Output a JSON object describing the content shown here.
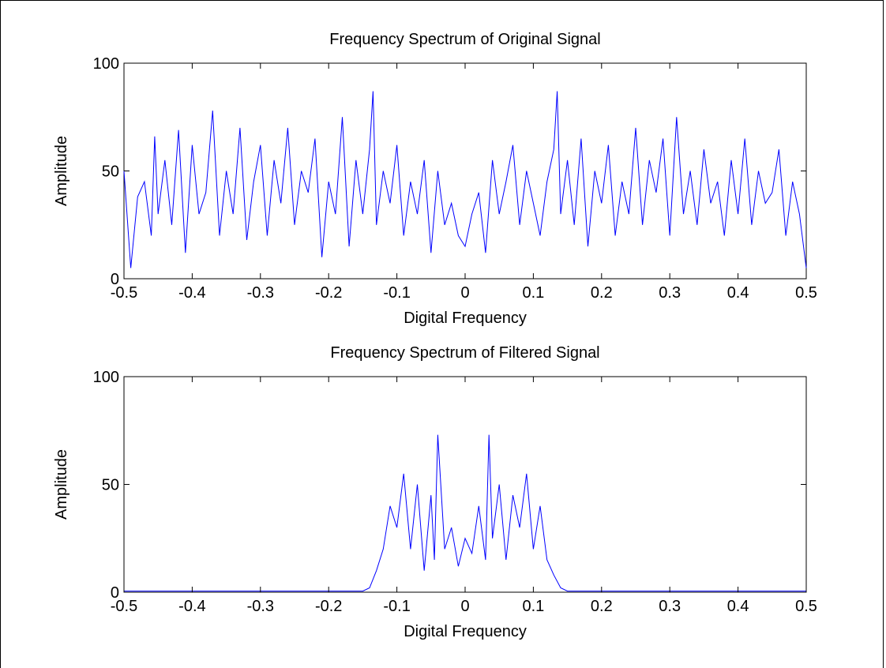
{
  "chart_data": [
    {
      "type": "line",
      "title": "Frequency Spectrum of Original Signal",
      "xlabel": "Digital Frequency",
      "ylabel": "Amplitude",
      "xlim": [
        -0.5,
        0.5
      ],
      "ylim": [
        0,
        100
      ],
      "xticks": [
        -0.5,
        -0.4,
        -0.3,
        -0.2,
        -0.1,
        0,
        0.1,
        0.2,
        0.3,
        0.4,
        0.5
      ],
      "xtick_labels": [
        "-0.5",
        "-0.4",
        "-0.3",
        "-0.2",
        "-0.1",
        "0",
        "0.1",
        "0.2",
        "0.3",
        "0.4",
        "0.5"
      ],
      "yticks": [
        0,
        50,
        100
      ],
      "ytick_labels": [
        "0",
        "50",
        "100"
      ],
      "grid": false,
      "color": "#0000ff",
      "series": [
        {
          "x": [
            -0.5,
            -0.49,
            -0.48,
            -0.47,
            -0.46,
            -0.455,
            -0.45,
            -0.44,
            -0.43,
            -0.42,
            -0.41,
            -0.4,
            -0.39,
            -0.38,
            -0.37,
            -0.36,
            -0.35,
            -0.34,
            -0.33,
            -0.32,
            -0.31,
            -0.3,
            -0.29,
            -0.28,
            -0.27,
            -0.26,
            -0.25,
            -0.24,
            -0.23,
            -0.22,
            -0.21,
            -0.2,
            -0.19,
            -0.18,
            -0.17,
            -0.16,
            -0.15,
            -0.14,
            -0.135,
            -0.13,
            -0.12,
            -0.11,
            -0.1,
            -0.09,
            -0.08,
            -0.07,
            -0.06,
            -0.05,
            -0.04,
            -0.03,
            -0.02,
            -0.01,
            0,
            0.01,
            0.02,
            0.03,
            0.04,
            0.05,
            0.06,
            0.07,
            0.08,
            0.09,
            0.1,
            0.11,
            0.12,
            0.13,
            0.135,
            0.14,
            0.15,
            0.16,
            0.17,
            0.18,
            0.19,
            0.2,
            0.21,
            0.22,
            0.23,
            0.24,
            0.25,
            0.26,
            0.27,
            0.28,
            0.29,
            0.3,
            0.31,
            0.32,
            0.33,
            0.34,
            0.35,
            0.36,
            0.37,
            0.38,
            0.39,
            0.4,
            0.41,
            0.42,
            0.43,
            0.44,
            0.45,
            0.46,
            0.47,
            0.48,
            0.49,
            0.5
          ],
          "y": [
            50,
            5,
            38,
            45,
            20,
            66,
            30,
            55,
            25,
            69,
            12,
            62,
            30,
            40,
            78,
            20,
            50,
            30,
            70,
            18,
            45,
            62,
            20,
            55,
            35,
            70,
            25,
            50,
            40,
            65,
            10,
            45,
            30,
            75,
            15,
            55,
            30,
            60,
            87,
            25,
            50,
            35,
            62,
            20,
            45,
            30,
            55,
            12,
            50,
            25,
            35,
            20,
            15,
            30,
            40,
            12,
            55,
            30,
            45,
            62,
            25,
            50,
            35,
            20,
            45,
            60,
            87,
            30,
            55,
            25,
            65,
            15,
            50,
            35,
            62,
            20,
            45,
            30,
            70,
            25,
            55,
            40,
            65,
            20,
            75,
            30,
            50,
            25,
            60,
            35,
            45,
            20,
            55,
            30,
            65,
            25,
            50,
            35,
            40,
            60,
            20,
            45,
            30,
            5
          ]
        }
      ]
    },
    {
      "type": "line",
      "title": "Frequency Spectrum of Filtered Signal",
      "xlabel": "Digital Frequency",
      "ylabel": "Amplitude",
      "xlim": [
        -0.5,
        0.5
      ],
      "ylim": [
        0,
        100
      ],
      "xticks": [
        -0.5,
        -0.4,
        -0.3,
        -0.2,
        -0.1,
        0,
        0.1,
        0.2,
        0.3,
        0.4,
        0.5
      ],
      "xtick_labels": [
        "-0.5",
        "-0.4",
        "-0.3",
        "-0.2",
        "-0.1",
        "0",
        "0.1",
        "0.2",
        "0.3",
        "0.4",
        "0.5"
      ],
      "yticks": [
        0,
        50,
        100
      ],
      "ytick_labels": [
        "0",
        "50",
        "100"
      ],
      "grid": false,
      "color": "#0000ff",
      "series": [
        {
          "x": [
            -0.5,
            -0.2,
            -0.15,
            -0.14,
            -0.13,
            -0.12,
            -0.11,
            -0.1,
            -0.09,
            -0.08,
            -0.07,
            -0.06,
            -0.05,
            -0.045,
            -0.04,
            -0.03,
            -0.02,
            -0.01,
            0,
            0.01,
            0.02,
            0.03,
            0.035,
            0.04,
            0.05,
            0.06,
            0.07,
            0.08,
            0.09,
            0.1,
            0.11,
            0.12,
            0.13,
            0.14,
            0.15,
            0.2,
            0.5
          ],
          "y": [
            0.5,
            0.5,
            0.5,
            2,
            10,
            20,
            40,
            30,
            55,
            20,
            50,
            10,
            45,
            15,
            73,
            20,
            30,
            12,
            25,
            18,
            40,
            15,
            73,
            25,
            50,
            15,
            45,
            30,
            55,
            20,
            40,
            15,
            8,
            2,
            0.5,
            0.5,
            0.5
          ]
        }
      ]
    }
  ]
}
